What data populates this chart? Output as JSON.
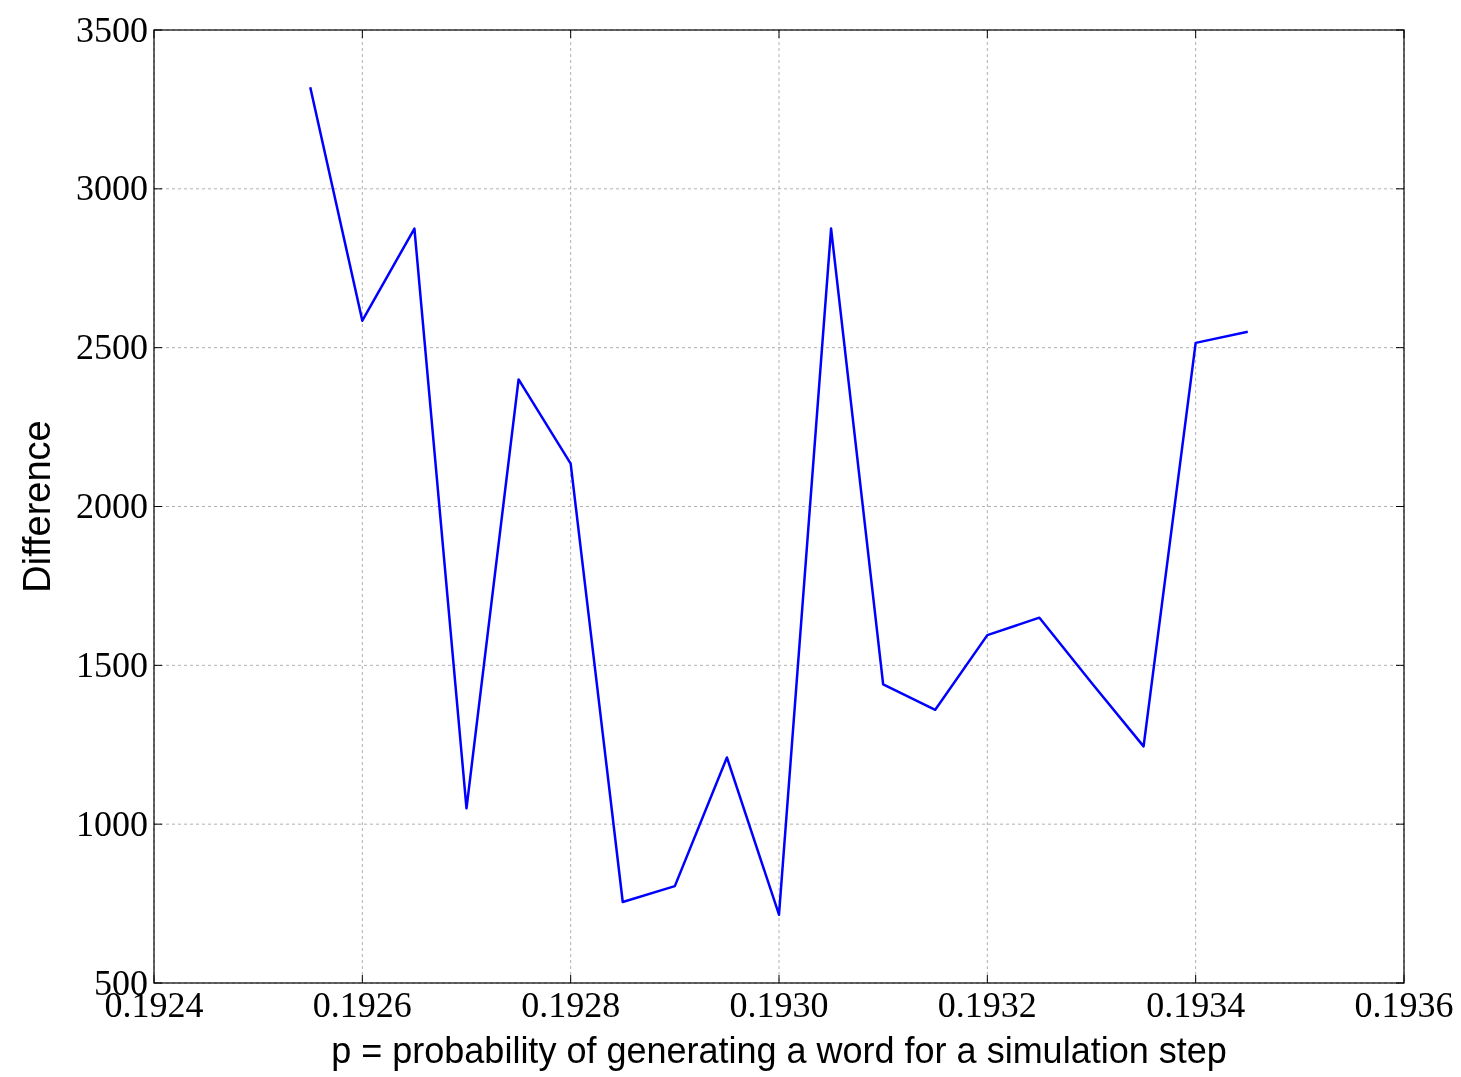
{
  "chart_data": {
    "type": "line",
    "xlabel": "p = probability of generating a word for a simulation step",
    "ylabel": "Difference",
    "x": [
      0.19255,
      0.1926,
      0.19265,
      0.1927,
      0.19275,
      0.1928,
      0.19285,
      0.1929,
      0.19295,
      0.193,
      0.19305,
      0.1931,
      0.19315,
      0.1932,
      0.19325,
      0.1933,
      0.19335,
      0.1934,
      0.19345
    ],
    "series": [
      {
        "color": "#0000ff",
        "values": [
          3320,
          2585,
          2875,
          1050,
          2400,
          2135,
          755,
          805,
          1210,
          715,
          2875,
          1440,
          1360,
          1595,
          1650,
          1445,
          1245,
          2515,
          2550
        ]
      }
    ],
    "xlim": [
      0.1924,
      0.1936
    ],
    "xticks": [
      {
        "value": 0.1924,
        "label": "0.1924"
      },
      {
        "value": 0.1926,
        "label": "0.1926"
      },
      {
        "value": 0.1928,
        "label": "0.1928"
      },
      {
        "value": 0.193,
        "label": "0.1930"
      },
      {
        "value": 0.1932,
        "label": "0.1932"
      },
      {
        "value": 0.1934,
        "label": "0.1934"
      },
      {
        "value": 0.1936,
        "label": "0.1936"
      }
    ],
    "ylim": [
      500,
      3500
    ],
    "yticks": [
      500,
      1000,
      1500,
      2000,
      2500,
      3000,
      3500
    ],
    "grid": true,
    "line_style": "solid",
    "marker": "none"
  }
}
